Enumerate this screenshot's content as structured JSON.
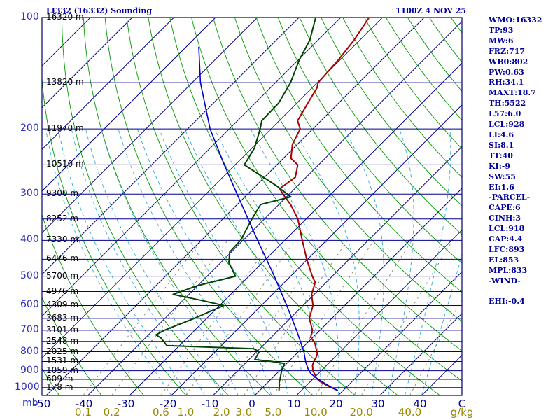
{
  "header": {
    "title": "LI332 (16332) Sounding",
    "timestamp": "1100Z  4 NOV 25"
  },
  "stats": [
    "WMO:16332",
    "TP:93",
    "MW:6",
    "FRZ:717",
    "WB0:802",
    "PW:0.63",
    "RH:34.1",
    "MAXT:18.7",
    "TH:5522",
    "L57:6.0",
    "LCL:928",
    "LI:4.6",
    "SI:8.1",
    "TT:40",
    "KI:-9",
    "SW:55",
    "EI:1.6",
    "-PARCEL-",
    "CAPE:6",
    "CINH:3",
    "LCL:918",
    "CAP:4.4",
    "LFC:893",
    "EL:853",
    "MPL:833",
    "-WIND-",
    "",
    "EHI:-0.4"
  ],
  "axis": {
    "pressure_unit": "mb",
    "mixing_unit": "g/kg",
    "pressure_ticks": [
      "100",
      "200",
      "300",
      "400",
      "500",
      "600",
      "700",
      "800",
      "900",
      "1000"
    ],
    "temperature_ticks": [
      "-50",
      "-40",
      "-30",
      "-20",
      "-10",
      "0",
      "10",
      "20",
      "30",
      "40",
      "C"
    ],
    "mixing_ticks": [
      "0.1",
      "0.2",
      "0.6",
      "1.0",
      "2.0",
      "3.0",
      "5.0",
      "10.0",
      "20.0",
      "40.0"
    ]
  },
  "colors": {
    "isobar": "#00008b",
    "isotherm": "#00008b",
    "dry_adiabat": "#009900",
    "moist_adiabat": "#33aadd",
    "mixing_line": "#888866",
    "temperature": "#aa0000",
    "dewpoint": "#004400",
    "parcel": "#0000cc"
  },
  "chart_data": {
    "type": "line",
    "subtype": "skew-T log-P sounding",
    "ylim": [
      1000,
      100
    ],
    "xlim": [
      -50,
      50
    ],
    "pressure_levels": [
      1000,
      950,
      900,
      850,
      800,
      700,
      600,
      500,
      400,
      300,
      250,
      200,
      150,
      100
    ],
    "heights": [
      {
        "p": 100,
        "label": "16320 m"
      },
      {
        "p": 150,
        "label": "13820 m"
      },
      {
        "p": 200,
        "label": "11970 m"
      },
      {
        "p": 250,
        "label": "10510 m"
      },
      {
        "p": 300,
        "label": "9300 m"
      },
      {
        "p": 350,
        "label": "8252 m"
      },
      {
        "p": 400,
        "label": "7330 m"
      },
      {
        "p": 450,
        "label": "6476 m"
      },
      {
        "p": 500,
        "label": "5700 m"
      },
      {
        "p": 550,
        "label": "4976 m"
      },
      {
        "p": 600,
        "label": "4309 m"
      },
      {
        "p": 650,
        "label": "3683 m"
      },
      {
        "p": 700,
        "label": "3101 m"
      },
      {
        "p": 750,
        "label": "2548 m"
      },
      {
        "p": 800,
        "label": "2025 m"
      },
      {
        "p": 850,
        "label": "1531 m"
      },
      {
        "p": 900,
        "label": "1059 m"
      },
      {
        "p": 950,
        "label": "609 m"
      },
      {
        "p": 1000,
        "label": "178 m"
      }
    ],
    "series": [
      {
        "name": "temperature",
        "points": [
          [
            1018,
            18.7
          ],
          [
            1000,
            16.5
          ],
          [
            980,
            14.2
          ],
          [
            960,
            12.0
          ],
          [
            940,
            10.4
          ],
          [
            925,
            9.6
          ],
          [
            900,
            8.0
          ],
          [
            870,
            6.6
          ],
          [
            850,
            6.0
          ],
          [
            830,
            5.6
          ],
          [
            810,
            5.0
          ],
          [
            790,
            3.8
          ],
          [
            760,
            2.0
          ],
          [
            730,
            -0.6
          ],
          [
            700,
            -1.8
          ],
          [
            650,
            -5.4
          ],
          [
            600,
            -7.6
          ],
          [
            560,
            -10.6
          ],
          [
            520,
            -12.6
          ],
          [
            500,
            -14.8
          ],
          [
            450,
            -20.2
          ],
          [
            400,
            -25.8
          ],
          [
            350,
            -32.0
          ],
          [
            320,
            -37.2
          ],
          [
            300,
            -41.5
          ],
          [
            290,
            -43.6
          ],
          [
            270,
            -42.6
          ],
          [
            250,
            -45.0
          ],
          [
            240,
            -48.2
          ],
          [
            220,
            -51.2
          ],
          [
            200,
            -53.0
          ],
          [
            190,
            -55.6
          ],
          [
            170,
            -57.4
          ],
          [
            155,
            -58.8
          ],
          [
            150,
            -59.8
          ],
          [
            130,
            -60.4
          ],
          [
            115,
            -61.4
          ],
          [
            100,
            -63.2
          ]
        ]
      },
      {
        "name": "dewpoint",
        "points": [
          [
            1018,
            4.6
          ],
          [
            1000,
            4.0
          ],
          [
            970,
            2.8
          ],
          [
            950,
            2.2
          ],
          [
            900,
            0.5
          ],
          [
            860,
            -0.6
          ],
          [
            850,
            -4.0
          ],
          [
            840,
            -8.6
          ],
          [
            800,
            -9.4
          ],
          [
            785,
            -11.5
          ],
          [
            770,
            -33.0
          ],
          [
            735,
            -36.2
          ],
          [
            720,
            -38.2
          ],
          [
            700,
            -37.3
          ],
          [
            650,
            -33.0
          ],
          [
            600,
            -29.0
          ],
          [
            580,
            -36.0
          ],
          [
            560,
            -43.8
          ],
          [
            530,
            -40.0
          ],
          [
            500,
            -33.2
          ],
          [
            460,
            -38.0
          ],
          [
            430,
            -40.4
          ],
          [
            400,
            -40.6
          ],
          [
            350,
            -43.0
          ],
          [
            320,
            -44.4
          ],
          [
            305,
            -39.0
          ],
          [
            285,
            -45.0
          ],
          [
            250,
            -57.8
          ],
          [
            225,
            -59.4
          ],
          [
            200,
            -62.6
          ],
          [
            190,
            -64.2
          ],
          [
            170,
            -64.4
          ],
          [
            150,
            -66.4
          ],
          [
            130,
            -69.8
          ],
          [
            115,
            -72.0
          ],
          [
            100,
            -76.0
          ]
        ]
      },
      {
        "name": "parcel",
        "points": [
          [
            1018,
            18.7
          ],
          [
            1000,
            16.6
          ],
          [
            950,
            11.4
          ],
          [
            918,
            8.3
          ],
          [
            893,
            6.6
          ],
          [
            853,
            4.2
          ],
          [
            800,
            1.3
          ],
          [
            700,
            -5.6
          ],
          [
            600,
            -13.9
          ],
          [
            500,
            -23.9
          ],
          [
            400,
            -36.5
          ],
          [
            300,
            -52.5
          ],
          [
            250,
            -62.6
          ],
          [
            200,
            -74.6
          ],
          [
            150,
            -88.0
          ],
          [
            120,
            -97.0
          ]
        ]
      }
    ]
  }
}
